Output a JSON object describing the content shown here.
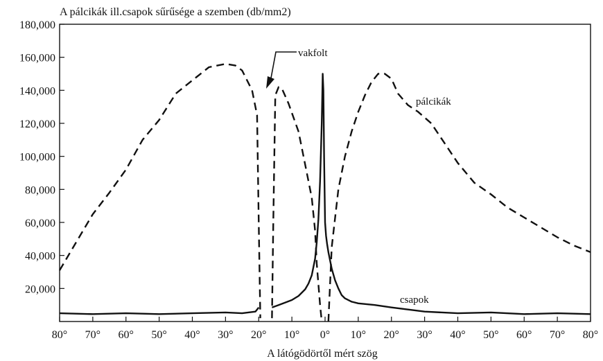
{
  "chart_data": {
    "type": "line",
    "title": "A pálcikák ill.csapok sűrűsége a szemben (db/mm2)",
    "xlabel": "A látógödörtől mért szög",
    "ylabel": "",
    "xlim": [
      -80,
      80
    ],
    "ylim": [
      0,
      180000
    ],
    "grid": false,
    "y_ticks": [
      20000,
      40000,
      60000,
      80000,
      100000,
      120000,
      140000,
      160000,
      180000
    ],
    "y_tick_labels": [
      "20,000",
      "40,000",
      "60,000",
      "80,000",
      "100,000",
      "120,000",
      "140,000",
      "160,000",
      "180,000"
    ],
    "x_ticks": [
      -80,
      -70,
      -60,
      -50,
      -40,
      -30,
      -20,
      -10,
      0,
      10,
      20,
      30,
      40,
      50,
      60,
      70,
      80
    ],
    "x_tick_labels": [
      "80°",
      "70°",
      "60°",
      "50°",
      "40°",
      "30°",
      "20°",
      "10°",
      "0°",
      "10°",
      "20°",
      "30°",
      "40°",
      "50°",
      "60°",
      "70°",
      "80°"
    ],
    "series": [
      {
        "name": "pálcikák",
        "style": "dashed",
        "color": "#111111",
        "segments": [
          {
            "x": [
              -80,
              -75,
              -70,
              -65,
              -60,
              -55,
              -50,
              -45,
              -40,
              -35,
              -30,
              -27,
              -25,
              -22,
              -20.5,
              -20,
              -19.5
            ],
            "y": [
              31000,
              48000,
              65000,
              78000,
              92000,
              110000,
              122000,
              138000,
              146000,
              154000,
              156000,
              155000,
              152000,
              140000,
              125000,
              60000,
              2000
            ]
          },
          {
            "x": [
              -16,
              -15.6,
              -15,
              -14,
              -13,
              -11,
              -8,
              -6,
              -4,
              -3,
              -2.5,
              -1.5,
              -1
            ],
            "y": [
              2000,
              60000,
              137000,
              142000,
              141000,
              132000,
              115000,
              95000,
              75000,
              55000,
              35000,
              10000,
              0
            ]
          },
          {
            "x": [
              1,
              2,
              4,
              6,
              8,
              10,
              12,
              14,
              16,
              18,
              20,
              22,
              25,
              28,
              32,
              36,
              40,
              45,
              50,
              55,
              60,
              65,
              70,
              75,
              80
            ],
            "y": [
              0,
              45000,
              80000,
              100000,
              115000,
              127000,
              137000,
              145000,
              150000,
              150000,
              147000,
              138000,
              131000,
              127000,
              120000,
              108000,
              96000,
              84000,
              77000,
              69000,
              63000,
              57000,
              51000,
              46000,
              42000
            ]
          }
        ]
      },
      {
        "name": "csapok",
        "style": "solid",
        "color": "#111111",
        "segments": [
          {
            "x": [
              -80,
              -70,
              -60,
              -50,
              -40,
              -30,
              -25,
              -21,
              -20
            ],
            "y": [
              5000,
              4500,
              5000,
              4500,
              5000,
              5500,
              5000,
              6000,
              8500
            ]
          },
          {
            "x": [
              -16,
              -14,
              -12,
              -10,
              -8,
              -6,
              -5,
              -4,
              -3,
              -2.5,
              -2,
              -1.5,
              -1,
              -0.7,
              -0.5,
              -0.3,
              0,
              0.3,
              0.6,
              1,
              1.5,
              2,
              3,
              4,
              5,
              6,
              8,
              10,
              15,
              20,
              30,
              40,
              50,
              60,
              70,
              80
            ],
            "y": [
              8500,
              10000,
              11500,
              13000,
              15500,
              19500,
              23000,
              28000,
              38000,
              48000,
              62000,
              85000,
              120000,
              150000,
              140000,
              100000,
              60000,
              52000,
              47000,
              42000,
              37000,
              32000,
              25000,
              20000,
              16000,
              14000,
              12000,
              11000,
              10000,
              8500,
              6000,
              5000,
              5500,
              4500,
              5000,
              4500
            ]
          }
        ]
      }
    ],
    "annotations": {
      "rods_label": "pálcikák",
      "cones_label": "csapok",
      "blind_spot_label": "vakfolt"
    }
  }
}
